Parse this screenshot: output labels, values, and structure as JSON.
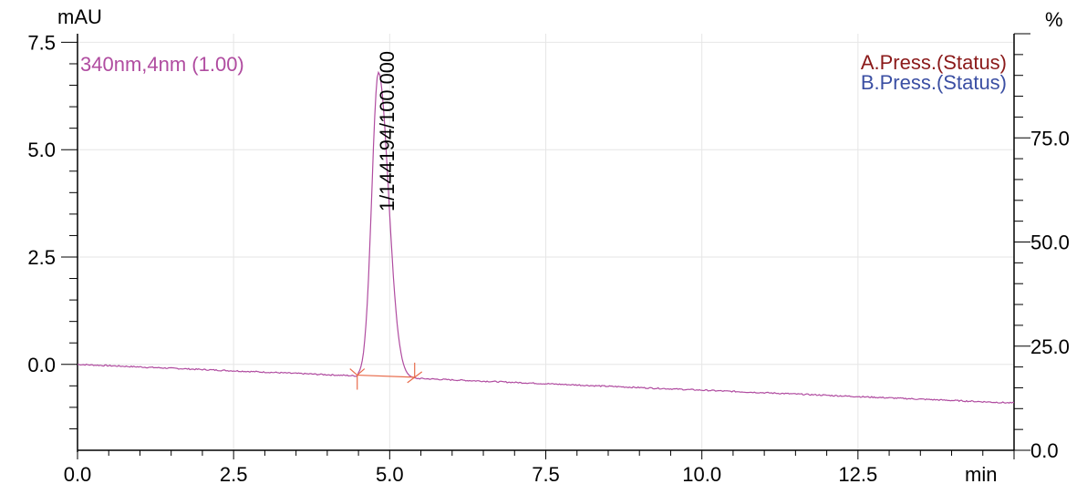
{
  "chart_data": {
    "type": "line",
    "left_axis_unit": "mAU",
    "right_axis_unit": "%",
    "x_axis_unit": "min",
    "xlim": [
      0,
      15
    ],
    "ylim": [
      -2.0,
      7.7
    ],
    "right_ylim": [
      0,
      100
    ],
    "x_ticks": [
      "0.0",
      "2.5",
      "5.0",
      "7.5",
      "10.0",
      "12.5"
    ],
    "y_ticks": [
      "7.5",
      "5.0",
      "2.5",
      "0.0"
    ],
    "right_ticks": [
      "75.0",
      "50.0",
      "25.0",
      "0.0"
    ],
    "grid": true,
    "series": [
      {
        "name": "340nm,4nm (1.00)",
        "color": "#b04ca0",
        "baseline_start": 0.0,
        "baseline_end": -0.9,
        "peak": {
          "x_start": 4.48,
          "x_apex": 4.82,
          "x_end": 5.4,
          "apex": 6.8
        }
      }
    ],
    "legend": [
      {
        "label": "A.Press.(Status)",
        "color": "#8b1a1a"
      },
      {
        "label": "B.Press.(Status)",
        "color": "#3b4fa3"
      }
    ],
    "peak_annotation": {
      "label": "1/144194/100.000",
      "x": 4.95
    },
    "integration_baseline": {
      "x_start": 4.48,
      "y_start": -0.25,
      "x_end": 5.4,
      "y_end": -0.3,
      "color": "#e86b4b"
    }
  }
}
